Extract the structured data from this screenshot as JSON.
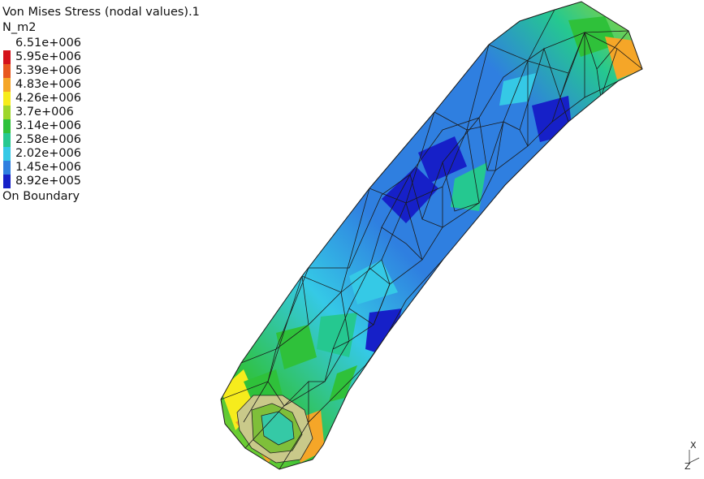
{
  "legend": {
    "title": "Von Mises Stress (nodal values).1",
    "unit": "N_m2",
    "footer": "On Boundary",
    "levels": [
      {
        "label": "6.51e+006",
        "color": ""
      },
      {
        "label": "5.95e+006",
        "color": "#d4121a"
      },
      {
        "label": "5.39e+006",
        "color": "#e8571e"
      },
      {
        "label": "4.83e+006",
        "color": "#f5a628"
      },
      {
        "label": "4.26e+006",
        "color": "#f6ec1c"
      },
      {
        "label": "3.7e+006",
        "color": "#9ed62b"
      },
      {
        "label": "3.14e+006",
        "color": "#2fc13a"
      },
      {
        "label": "2.58e+006",
        "color": "#25c890"
      },
      {
        "label": "2.02e+006",
        "color": "#35c9e6"
      },
      {
        "label": "1.45e+006",
        "color": "#2f7fe0"
      },
      {
        "label": "8.92e+005",
        "color": "#1620c8"
      }
    ]
  },
  "triad": {
    "axis_x": "X",
    "axis_z": "Z"
  }
}
